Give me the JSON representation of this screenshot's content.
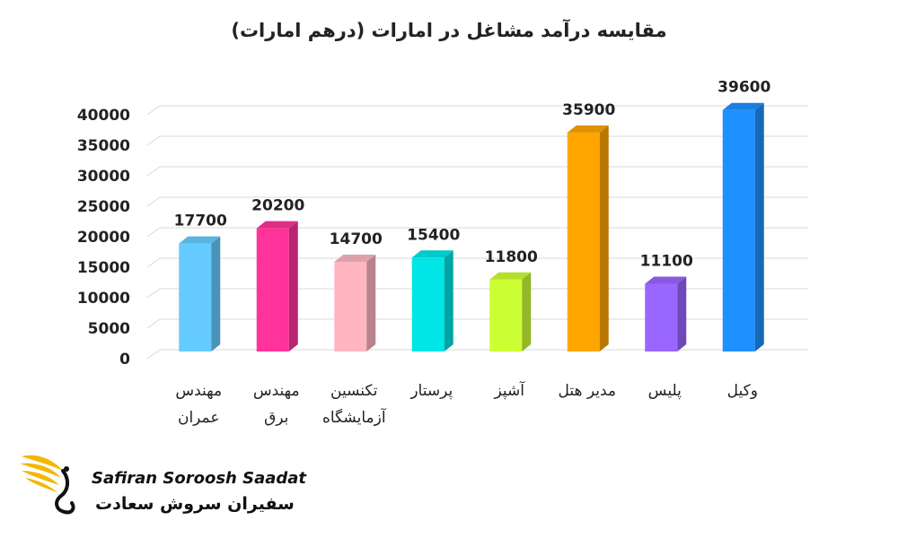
{
  "chart_data": {
    "type": "bar",
    "title": "مقایسه درآمد مشاغل در امارات (درهم امارات)",
    "categories": [
      [
        "مهندس",
        "عمران"
      ],
      [
        "مهندس",
        "برق"
      ],
      [
        "تکنسین",
        "آزمایشگاه"
      ],
      [
        "پرستار"
      ],
      [
        "آشپز"
      ],
      [
        "مدیر هتل"
      ],
      [
        "پلیس"
      ],
      [
        "وکیل"
      ]
    ],
    "values": [
      17700,
      20200,
      14700,
      15400,
      11800,
      35900,
      11100,
      39600
    ],
    "colors": [
      "#66ccff",
      "#ff3399",
      "#ffb6c1",
      "#00e5e5",
      "#ccff33",
      "#ffa500",
      "#9966ff",
      "#1e90ff"
    ],
    "ylim": [
      0,
      40000
    ],
    "yticks": [
      0,
      5000,
      10000,
      15000,
      20000,
      25000,
      30000,
      35000,
      40000
    ],
    "grid": true,
    "data_labels": true
  },
  "logo": {
    "name_en": "Safiran Soroosh Saadat",
    "name_fa": "سفیران سروش سعادت",
    "colors": [
      "#f2b705",
      "#111111"
    ]
  }
}
